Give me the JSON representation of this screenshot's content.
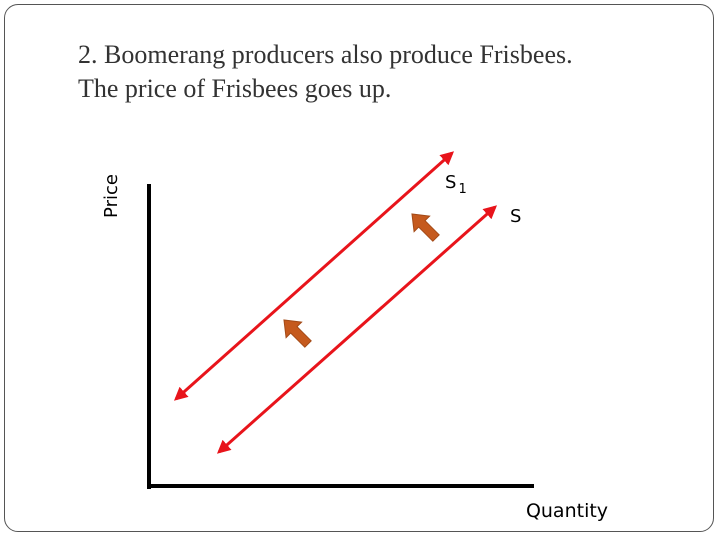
{
  "title": {
    "line1": "2. Boomerang producers also produce Frisbees.",
    "line2": "The price of Frisbees goes up."
  },
  "diagram": {
    "y_axis_label": "Price",
    "x_axis_label": "Quantity",
    "curves": {
      "new_supply": {
        "label_base": "S",
        "label_sub": "1"
      },
      "original_supply": {
        "label": "S"
      }
    },
    "colors": {
      "axes": "#000000",
      "supply_curves": "#e8141b",
      "shift_arrows": "#c55a1e",
      "shift_arrow_outline": "#a34a17"
    },
    "shift_direction": "up-left"
  }
}
